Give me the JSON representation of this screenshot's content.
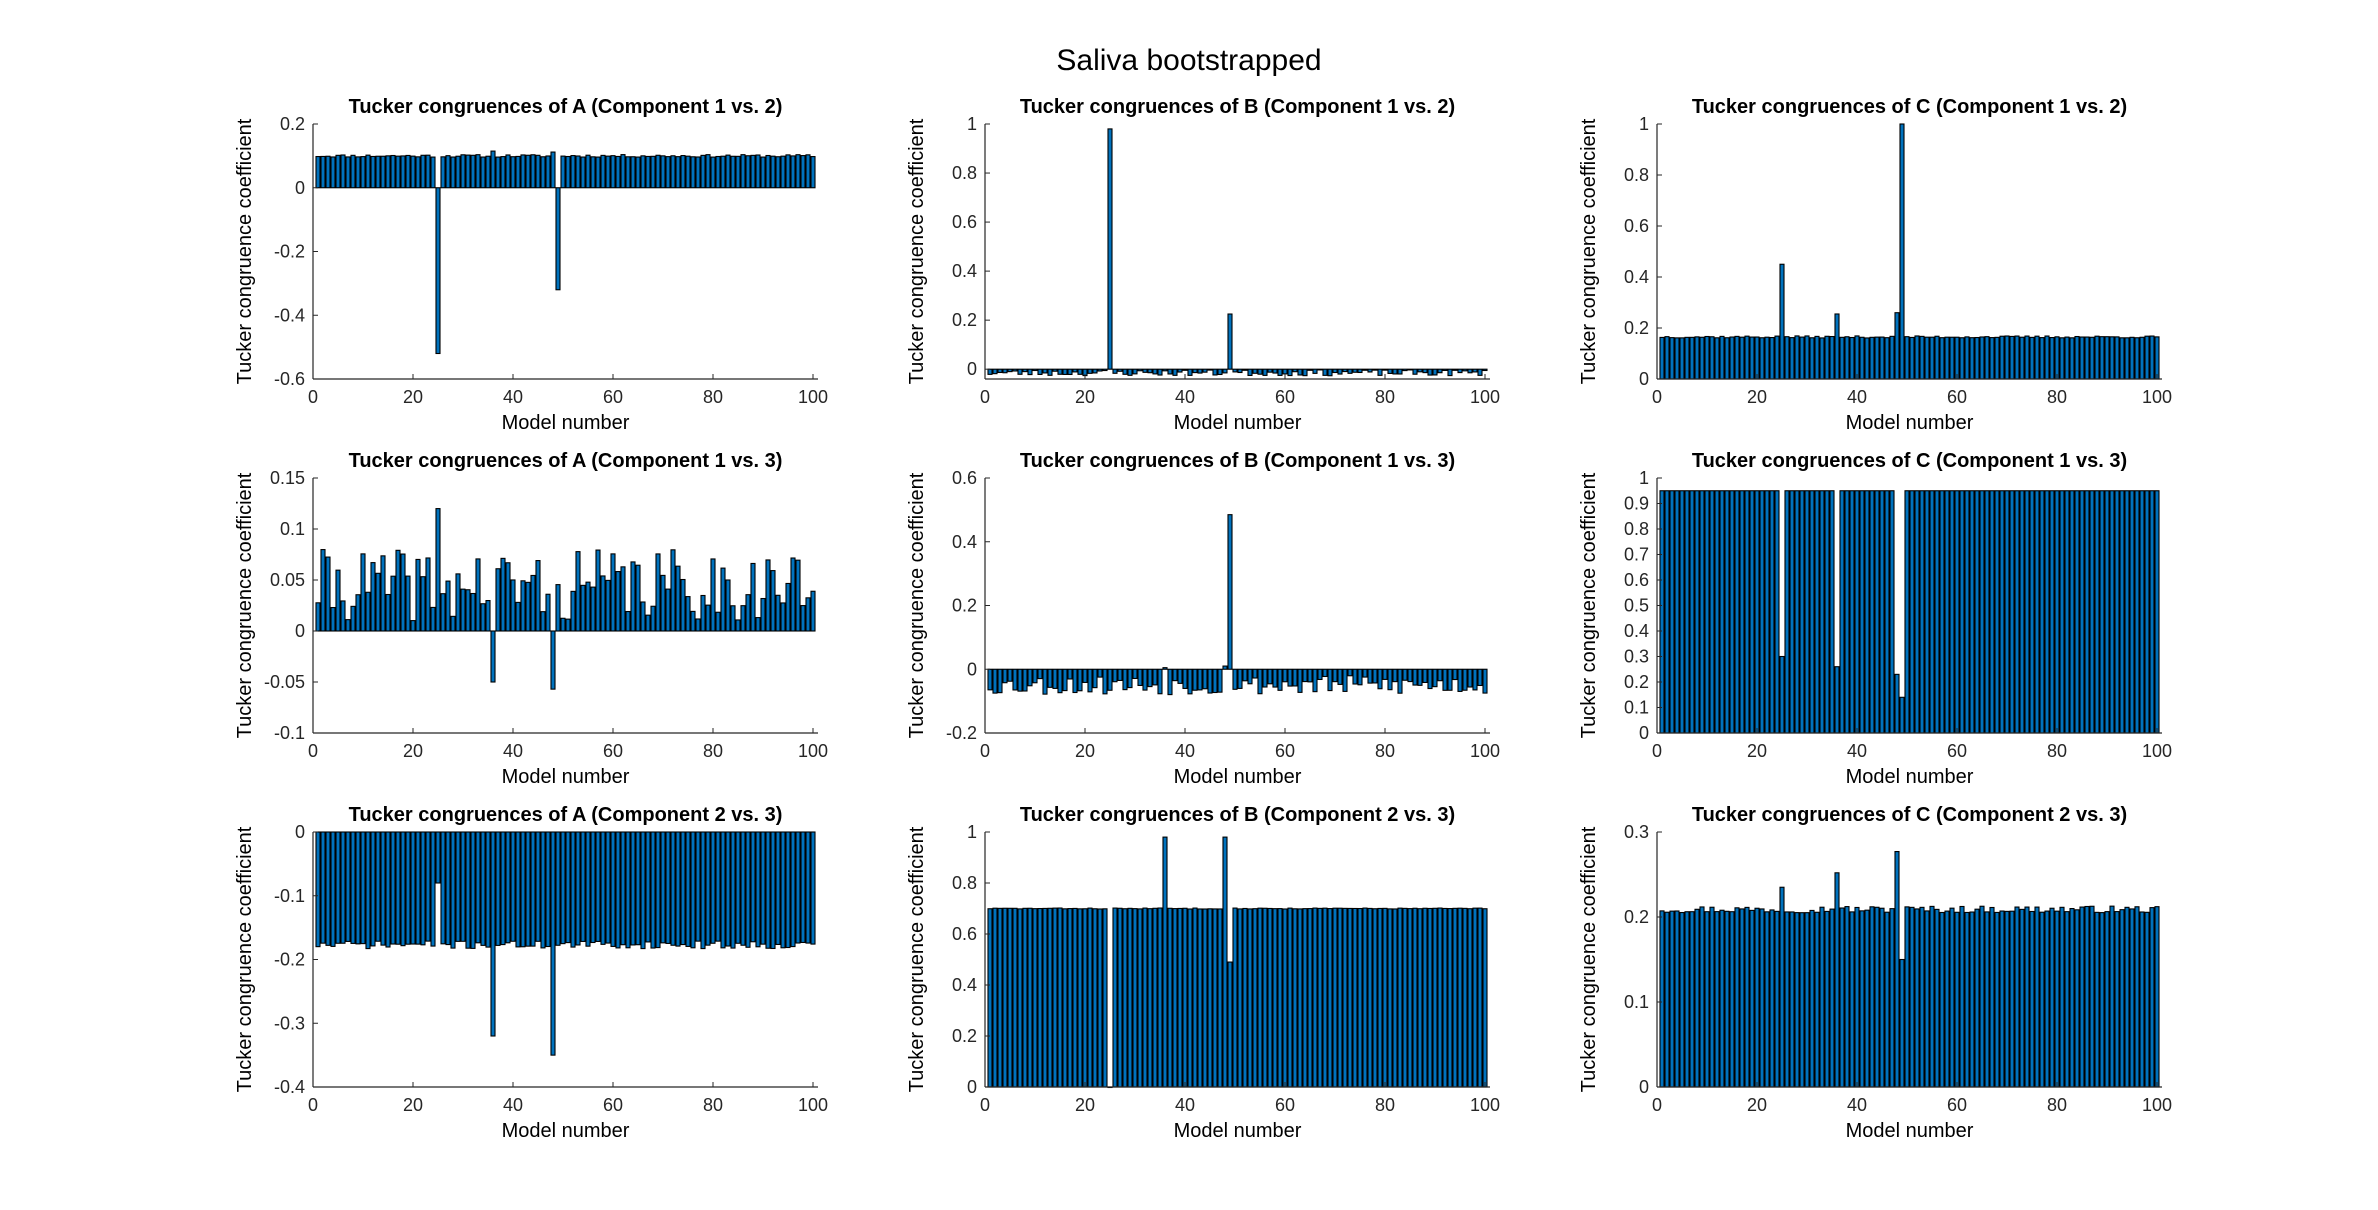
{
  "figure": {
    "title": "Saliva bootstrapped"
  },
  "colors": {
    "bar_fill": "#0072BD",
    "bar_edge": "#000000",
    "axis": "#262626"
  },
  "chart_data": [
    {
      "type": "bar",
      "title": "Tucker congruences of A (Component 1 vs. 2)",
      "xlabel": "Model number",
      "ylabel": "Tucker congruence coefficient",
      "xlim": [
        0,
        101
      ],
      "ylim": [
        -0.6,
        0.2
      ],
      "xticks": [
        0,
        20,
        40,
        60,
        80,
        100
      ],
      "yticks": [
        -0.6,
        -0.4,
        -0.2,
        0,
        0.2
      ],
      "ytick_labels": [
        "-0.6",
        "-0.4",
        "-0.2",
        "0",
        "0.2"
      ],
      "base": 0.1,
      "jitter": 0.004,
      "seed": 11,
      "overrides": {
        "25": -0.52,
        "36": 0.115,
        "48": 0.112,
        "49": -0.32
      }
    },
    {
      "type": "bar",
      "title": "Tucker congruences of B (Component 1 vs. 2)",
      "xlabel": "Model number",
      "ylabel": "Tucker congruence coefficient",
      "xlim": [
        0,
        101
      ],
      "ylim": [
        -0.04,
        1.0
      ],
      "xticks": [
        0,
        20,
        40,
        60,
        80,
        100
      ],
      "yticks": [
        0,
        0.2,
        0.4,
        0.6,
        0.8,
        1
      ],
      "ytick_labels": [
        "0",
        "0.2",
        "0.4",
        "0.6",
        "0.8",
        "1"
      ],
      "base": -0.015,
      "jitter": 0.012,
      "seed": 23,
      "overrides": {
        "25": 0.98,
        "49": 0.225
      }
    },
    {
      "type": "bar",
      "title": "Tucker congruences of C (Component 1 vs. 2)",
      "xlabel": "Model number",
      "ylabel": "Tucker congruence coefficient",
      "xlim": [
        0,
        101
      ],
      "ylim": [
        0,
        1.0
      ],
      "xticks": [
        0,
        20,
        40,
        60,
        80,
        100
      ],
      "yticks": [
        0,
        0.2,
        0.4,
        0.6,
        0.8,
        1
      ],
      "ytick_labels": [
        "0",
        "0.2",
        "0.4",
        "0.6",
        "0.8",
        "1"
      ],
      "base": 0.165,
      "jitter": 0.004,
      "seed": 37,
      "overrides": {
        "25": 0.45,
        "36": 0.255,
        "48": 0.26,
        "49": 1.0
      }
    },
    {
      "type": "bar",
      "title": "Tucker congruences of A (Component 1 vs. 3)",
      "xlabel": "Model number",
      "ylabel": "Tucker congruence coefficient",
      "xlim": [
        0,
        101
      ],
      "ylim": [
        -0.1,
        0.15
      ],
      "xticks": [
        0,
        20,
        40,
        60,
        80,
        100
      ],
      "yticks": [
        -0.1,
        -0.05,
        0,
        0.05,
        0.1,
        0.15
      ],
      "ytick_labels": [
        "-0.1",
        "-0.05",
        "0",
        "0.05",
        "0.1",
        "0.15"
      ],
      "base": 0.045,
      "jitter": 0.035,
      "seed": 41,
      "overrides": {
        "25": 0.12,
        "36": -0.05,
        "48": -0.057
      }
    },
    {
      "type": "bar",
      "title": "Tucker congruences of B (Component 1 vs. 3)",
      "xlabel": "Model number",
      "ylabel": "Tucker congruence coefficient",
      "xlim": [
        0,
        101
      ],
      "ylim": [
        -0.2,
        0.6
      ],
      "xticks": [
        0,
        20,
        40,
        60,
        80,
        100
      ],
      "yticks": [
        -0.2,
        0,
        0.2,
        0.4,
        0.6
      ],
      "ytick_labels": [
        "-0.2",
        "0",
        "0.2",
        "0.4",
        "0.6"
      ],
      "base": -0.05,
      "jitter": 0.03,
      "seed": 53,
      "overrides": {
        "36": 0.005,
        "48": 0.01,
        "49": 0.485
      }
    },
    {
      "type": "bar",
      "title": "Tucker congruences of C (Component 1 vs. 3)",
      "xlabel": "Model number",
      "ylabel": "Tucker congruence coefficient",
      "xlim": [
        0,
        101
      ],
      "ylim": [
        0,
        1.0
      ],
      "xticks": [
        0,
        20,
        40,
        60,
        80,
        100
      ],
      "yticks": [
        0,
        0.1,
        0.2,
        0.3,
        0.4,
        0.5,
        0.6,
        0.7,
        0.8,
        0.9,
        1
      ],
      "ytick_labels": [
        "0",
        "0.1",
        "0.2",
        "0.3",
        "0.4",
        "0.5",
        "0.6",
        "0.7",
        "0.8",
        "0.9",
        "1"
      ],
      "base": 0.95,
      "jitter": 0.0,
      "seed": 67,
      "overrides": {
        "25": 0.3,
        "36": 0.26,
        "48": 0.23,
        "49": 0.14
      }
    },
    {
      "type": "bar",
      "title": "Tucker congruences of A (Component 2 vs. 3)",
      "xlabel": "Model number",
      "ylabel": "Tucker congruence coefficient",
      "xlim": [
        0,
        101
      ],
      "ylim": [
        -0.4,
        0
      ],
      "xticks": [
        0,
        20,
        40,
        60,
        80,
        100
      ],
      "yticks": [
        -0.4,
        -0.3,
        -0.2,
        -0.1,
        0
      ],
      "ytick_labels": [
        "-0.4",
        "-0.3",
        "-0.2",
        "-0.1",
        "0"
      ],
      "base": -0.177,
      "jitter": 0.006,
      "seed": 71,
      "overrides": {
        "25": -0.08,
        "36": -0.32,
        "48": -0.35
      }
    },
    {
      "type": "bar",
      "title": "Tucker congruences of B (Component 2 vs. 3)",
      "xlabel": "Model number",
      "ylabel": "Tucker congruence coefficient",
      "xlim": [
        0,
        101
      ],
      "ylim": [
        0,
        1.0
      ],
      "xticks": [
        0,
        20,
        40,
        60,
        80,
        100
      ],
      "yticks": [
        0,
        0.2,
        0.4,
        0.6,
        0.8,
        1
      ],
      "ytick_labels": [
        "0",
        "0.2",
        "0.4",
        "0.6",
        "0.8",
        "1"
      ],
      "base": 0.7,
      "jitter": 0.002,
      "seed": 83,
      "overrides": {
        "25": 0.0,
        "36": 0.98,
        "48": 0.98,
        "49": 0.49
      }
    },
    {
      "type": "bar",
      "title": "Tucker congruences of C (Component 2 vs. 3)",
      "xlabel": "Model number",
      "ylabel": "Tucker congruence coefficient",
      "xlim": [
        0,
        101
      ],
      "ylim": [
        0,
        0.3
      ],
      "xticks": [
        0,
        20,
        40,
        60,
        80,
        100
      ],
      "yticks": [
        0,
        0.1,
        0.2,
        0.3
      ],
      "ytick_labels": [
        "0",
        "0.1",
        "0.2",
        "0.3"
      ],
      "base": 0.209,
      "jitter": 0.004,
      "seed": 97,
      "overrides": {
        "25": 0.235,
        "36": 0.252,
        "48": 0.277,
        "49": 0.15
      }
    }
  ]
}
